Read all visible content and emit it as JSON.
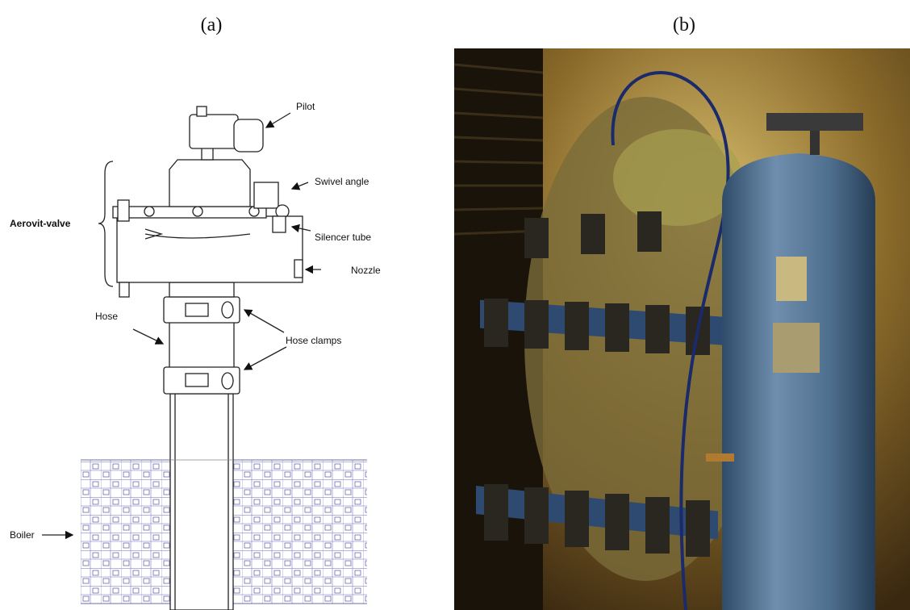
{
  "panels": [
    {
      "label": "(a)",
      "annotations": {
        "pilot": "Pilot",
        "swivel_angle": "Swivel angle",
        "aerovit_valve": "Aerovit-valve",
        "silencer_tube": "Silencer tube",
        "nozzle": "Nozzle",
        "hose": "Hose",
        "hose_clamps": "Hose clamps",
        "boiler": "Boiler"
      }
    },
    {
      "label": "(b)"
    }
  ]
}
